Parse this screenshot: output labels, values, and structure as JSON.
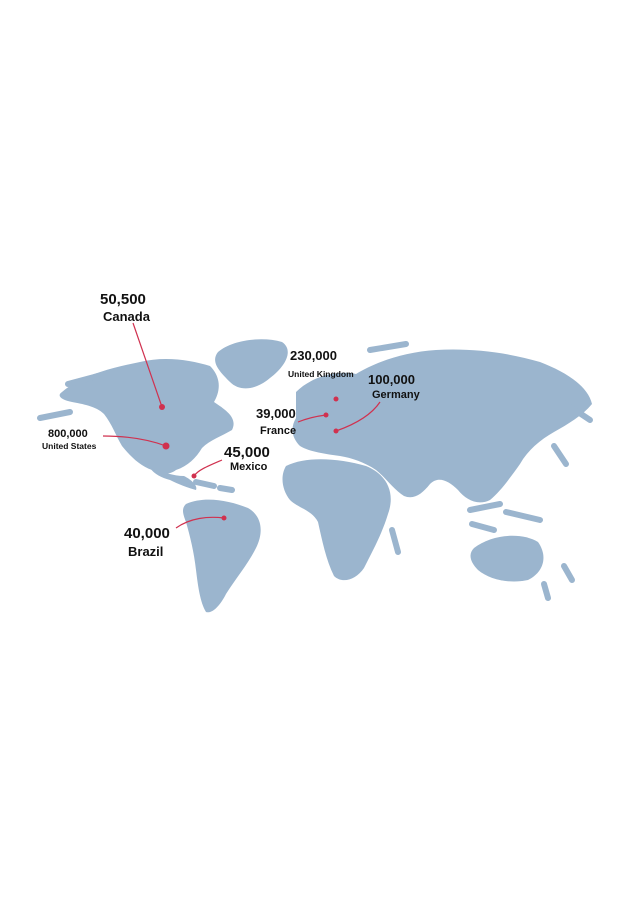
{
  "colors": {
    "land": "#9bb5ce",
    "marker": "#d0314f",
    "text": "#111111",
    "background": "#ffffff"
  },
  "markers": [
    {
      "id": "canada",
      "value": "50,500",
      "country": "Canada"
    },
    {
      "id": "united-states",
      "value": "800,000",
      "country": "United States"
    },
    {
      "id": "mexico",
      "value": "45,000",
      "country": "Mexico"
    },
    {
      "id": "brazil",
      "value": "40,000",
      "country": "Brazil"
    },
    {
      "id": "united-kingdom",
      "value": "230,000",
      "country": "United Kingdom"
    },
    {
      "id": "france",
      "value": "39,000",
      "country": "France"
    },
    {
      "id": "germany",
      "value": "100,000",
      "country": "Germany"
    }
  ]
}
